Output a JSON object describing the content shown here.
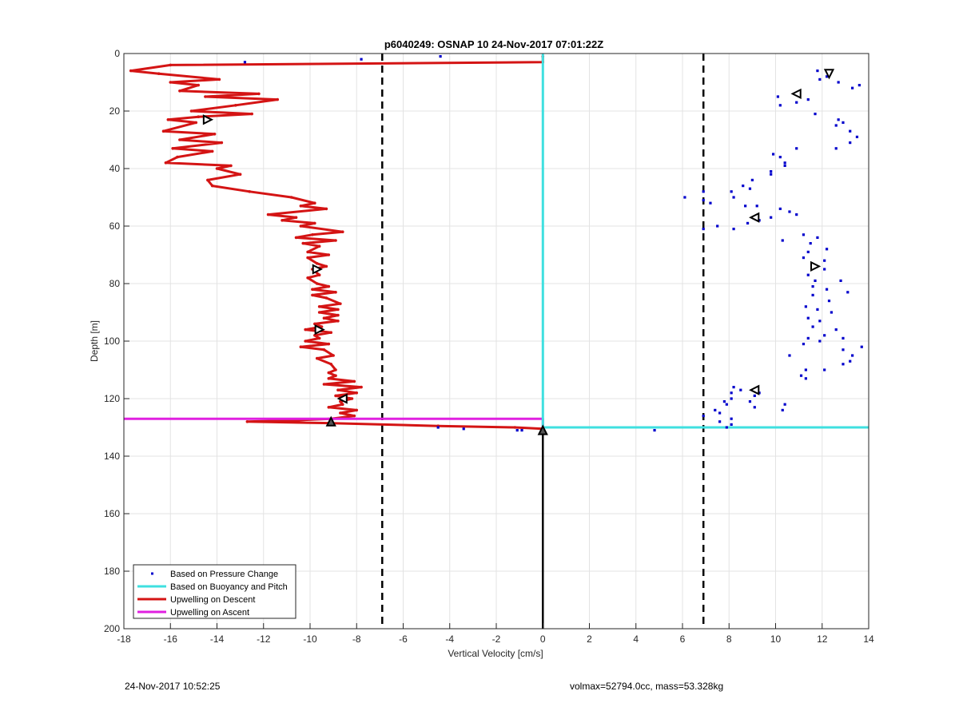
{
  "chart_data": {
    "type": "line",
    "title": "p6040249: OSNAP 10 24-Nov-2017 07:01:22Z",
    "xlabel": "Vertical Velocity [cm/s]",
    "ylabel": "Depth [m]",
    "xlim": [
      -18,
      14
    ],
    "ylim": [
      0,
      200
    ],
    "y_reversed": true,
    "grid": true,
    "xticks": [
      -18,
      -16,
      -14,
      -12,
      -10,
      -8,
      -6,
      -4,
      -2,
      0,
      2,
      4,
      6,
      8,
      10,
      12,
      14
    ],
    "yticks": [
      0,
      20,
      40,
      60,
      80,
      100,
      120,
      140,
      160,
      180,
      200
    ],
    "legend_position": "bottom-left",
    "legend": [
      {
        "name": "Based on Pressure Change",
        "color": "#0000cc",
        "style": "dots"
      },
      {
        "name": "Based on Buoyancy and Pitch",
        "color": "#3fe0e0",
        "style": "line"
      },
      {
        "name": "Upwelling on Descent",
        "color": "#d41414",
        "style": "line"
      },
      {
        "name": "Upwelling on Ascent",
        "color": "#e020e0",
        "style": "line"
      }
    ],
    "reference_lines": [
      {
        "x": -6.9,
        "style": "dashed",
        "color": "#000000"
      },
      {
        "x": 6.9,
        "style": "dashed",
        "color": "#000000"
      },
      {
        "x": 0,
        "y_from": 130,
        "y_to": 200,
        "style": "solid",
        "color": "#000000"
      }
    ],
    "series": [
      {
        "label": "Upwelling on Descent",
        "color": "#d41414",
        "points": [
          [
            0,
            1
          ],
          [
            0,
            3
          ],
          [
            -16,
            4
          ],
          [
            -17.7,
            6
          ],
          [
            -16.5,
            7
          ],
          [
            -13.9,
            9
          ],
          [
            -16,
            10
          ],
          [
            -14.8,
            11
          ],
          [
            -15.6,
            13
          ],
          [
            -12.2,
            14
          ],
          [
            -14.5,
            15
          ],
          [
            -11.4,
            16
          ],
          [
            -13.2,
            18
          ],
          [
            -15.1,
            20
          ],
          [
            -12.5,
            21
          ],
          [
            -14.8,
            22
          ],
          [
            -16.1,
            23
          ],
          [
            -14.9,
            24
          ],
          [
            -16.3,
            27
          ],
          [
            -14.1,
            28
          ],
          [
            -15.6,
            30
          ],
          [
            -13.8,
            31
          ],
          [
            -15.9,
            33
          ],
          [
            -14.2,
            34
          ],
          [
            -15.7,
            36
          ],
          [
            -16.2,
            38
          ],
          [
            -13.4,
            39
          ],
          [
            -14,
            40
          ],
          [
            -13,
            42
          ],
          [
            -14.4,
            44
          ],
          [
            -14.2,
            46
          ],
          [
            -12.6,
            48
          ],
          [
            -10.8,
            50
          ],
          [
            -9.8,
            52
          ],
          [
            -10.4,
            53
          ],
          [
            -9.3,
            54
          ],
          [
            -11.8,
            56
          ],
          [
            -10.6,
            57
          ],
          [
            -11.2,
            58
          ],
          [
            -9.8,
            59
          ],
          [
            -10.4,
            60
          ],
          [
            -8.6,
            62
          ],
          [
            -9.9,
            63
          ],
          [
            -10.6,
            64
          ],
          [
            -8.9,
            65
          ],
          [
            -10.3,
            66
          ],
          [
            -9.6,
            67
          ],
          [
            -10.1,
            69
          ],
          [
            -9.2,
            70
          ],
          [
            -10.1,
            71
          ],
          [
            -9.7,
            73
          ],
          [
            -9.3,
            74
          ],
          [
            -9.9,
            75
          ],
          [
            -9.6,
            77
          ],
          [
            -10.1,
            78
          ],
          [
            -9.7,
            80
          ],
          [
            -9.2,
            81
          ],
          [
            -9.9,
            82
          ],
          [
            -8.9,
            83
          ],
          [
            -9.9,
            84
          ],
          [
            -9.3,
            85
          ],
          [
            -8.7,
            87
          ],
          [
            -9.6,
            88
          ],
          [
            -8.8,
            89
          ],
          [
            -9.6,
            90
          ],
          [
            -8.8,
            91
          ],
          [
            -9.4,
            92
          ],
          [
            -8.8,
            93
          ],
          [
            -9.8,
            94
          ],
          [
            -9.5,
            95
          ],
          [
            -10.2,
            96
          ],
          [
            -9.1,
            97
          ],
          [
            -9.8,
            98
          ],
          [
            -9.6,
            99
          ],
          [
            -10.2,
            100
          ],
          [
            -9.2,
            101
          ],
          [
            -10.4,
            102
          ],
          [
            -9.4,
            103
          ],
          [
            -9,
            105
          ],
          [
            -9.7,
            106
          ],
          [
            -9.1,
            108
          ],
          [
            -8.9,
            110
          ],
          [
            -9.2,
            111
          ],
          [
            -8.9,
            112
          ],
          [
            -9.2,
            113
          ],
          [
            -8.1,
            114
          ],
          [
            -9.4,
            115
          ],
          [
            -7.8,
            116
          ],
          [
            -8.8,
            117
          ],
          [
            -8,
            118
          ],
          [
            -8.9,
            119
          ],
          [
            -8.2,
            120
          ],
          [
            -8.7,
            121
          ],
          [
            -8.6,
            122
          ],
          [
            -9.2,
            123
          ],
          [
            -8,
            124
          ],
          [
            -8.7,
            125
          ],
          [
            -8.1,
            126
          ],
          [
            -9.1,
            127
          ],
          [
            -10.5,
            127.5
          ],
          [
            -12.7,
            128
          ],
          [
            -9.2,
            128.5
          ],
          [
            -4.5,
            129.5
          ],
          [
            -1.2,
            130
          ],
          [
            0,
            130.5
          ]
        ]
      },
      {
        "label": "Upwelling on Ascent",
        "color": "#e020e0",
        "points": [
          [
            -18,
            127
          ],
          [
            0,
            127
          ],
          [
            0,
            130
          ]
        ]
      },
      {
        "label": "Based on Buoyancy and Pitch",
        "color": "#3fe0e0",
        "points": [
          [
            0,
            0
          ],
          [
            0,
            130
          ],
          [
            14,
            130
          ]
        ]
      }
    ],
    "scatter_series": {
      "label": "Based on Pressure Change",
      "color": "#0000cc",
      "points": [
        [
          -12.8,
          3
        ],
        [
          -7.8,
          2
        ],
        [
          -4.4,
          1
        ],
        [
          11.9,
          9
        ],
        [
          12.2,
          8
        ],
        [
          11.8,
          6
        ],
        [
          12.7,
          10
        ],
        [
          13.3,
          12
        ],
        [
          13.6,
          11
        ],
        [
          10.1,
          15
        ],
        [
          10.9,
          17
        ],
        [
          11.4,
          16
        ],
        [
          11.7,
          21
        ],
        [
          10.2,
          18
        ],
        [
          12.7,
          23
        ],
        [
          12.6,
          25
        ],
        [
          12.9,
          24
        ],
        [
          13.2,
          27
        ],
        [
          13.5,
          29
        ],
        [
          12.6,
          33
        ],
        [
          13.2,
          31
        ],
        [
          9.9,
          35
        ],
        [
          10.2,
          36
        ],
        [
          10.4,
          38
        ],
        [
          10.4,
          39
        ],
        [
          10.9,
          33
        ],
        [
          9.8,
          41
        ],
        [
          9.8,
          42
        ],
        [
          9,
          44
        ],
        [
          8.6,
          46
        ],
        [
          8.9,
          47
        ],
        [
          8.1,
          48
        ],
        [
          8.2,
          50
        ],
        [
          6.9,
          48
        ],
        [
          6.1,
          50
        ],
        [
          6.9,
          51
        ],
        [
          7.2,
          52
        ],
        [
          8.7,
          53
        ],
        [
          9.2,
          53
        ],
        [
          10.2,
          54
        ],
        [
          10.6,
          55
        ],
        [
          10.9,
          56
        ],
        [
          9.8,
          57
        ],
        [
          9.3,
          58
        ],
        [
          8.8,
          59
        ],
        [
          7.5,
          60
        ],
        [
          6.9,
          61
        ],
        [
          8.2,
          61
        ],
        [
          10.3,
          65
        ],
        [
          11.2,
          63
        ],
        [
          11.8,
          64
        ],
        [
          11.5,
          66
        ],
        [
          12.2,
          68
        ],
        [
          11.4,
          69
        ],
        [
          11.2,
          71
        ],
        [
          12.1,
          72
        ],
        [
          11.6,
          74
        ],
        [
          12.1,
          75
        ],
        [
          11.4,
          77
        ],
        [
          11.7,
          79
        ],
        [
          12.8,
          79
        ],
        [
          11.6,
          81
        ],
        [
          12.2,
          82
        ],
        [
          13.1,
          83
        ],
        [
          11.6,
          84
        ],
        [
          12.3,
          86
        ],
        [
          11.3,
          88
        ],
        [
          11.8,
          89
        ],
        [
          12.4,
          90
        ],
        [
          11.4,
          92
        ],
        [
          11.9,
          93
        ],
        [
          11.6,
          95
        ],
        [
          12.6,
          96
        ],
        [
          12.1,
          98
        ],
        [
          11.4,
          99
        ],
        [
          12.9,
          99
        ],
        [
          11.9,
          100
        ],
        [
          11.2,
          101
        ],
        [
          13.7,
          102
        ],
        [
          12.9,
          103
        ],
        [
          13.3,
          105
        ],
        [
          13.2,
          107
        ],
        [
          12.9,
          108
        ],
        [
          10.6,
          105
        ],
        [
          11.3,
          110
        ],
        [
          12.1,
          110
        ],
        [
          11.1,
          112
        ],
        [
          11.3,
          113
        ],
        [
          8.2,
          116
        ],
        [
          8.5,
          117
        ],
        [
          8.1,
          118
        ],
        [
          9.3,
          118
        ],
        [
          9.1,
          119
        ],
        [
          8.1,
          120
        ],
        [
          7.8,
          121
        ],
        [
          8.9,
          121
        ],
        [
          7.9,
          122
        ],
        [
          10.4,
          122
        ],
        [
          9.1,
          123
        ],
        [
          7.4,
          124
        ],
        [
          7.6,
          125
        ],
        [
          10.3,
          124
        ],
        [
          6.9,
          126
        ],
        [
          8.1,
          127
        ],
        [
          7.6,
          128
        ],
        [
          8.1,
          129
        ],
        [
          7.9,
          130
        ],
        [
          4.8,
          131
        ],
        [
          -4.5,
          130
        ],
        [
          -3.4,
          130.5
        ],
        [
          -1.1,
          131
        ],
        [
          -0.9,
          131
        ]
      ]
    },
    "markers": [
      {
        "shape": "triangle-right",
        "points": [
          [
            -14.4,
            23
          ],
          [
            -9.6,
            96
          ],
          [
            -9.7,
            75
          ]
        ]
      },
      {
        "shape": "triangle-left",
        "points": [
          [
            -8.6,
            120
          ],
          [
            9.1,
            57
          ],
          [
            10.9,
            14
          ],
          [
            9.1,
            117
          ]
        ]
      },
      {
        "shape": "triangle-down",
        "points": [
          [
            12.3,
            7
          ]
        ]
      },
      {
        "shape": "triangle-up",
        "points": [
          [
            -9.1,
            128
          ],
          [
            0,
            131
          ]
        ]
      },
      {
        "shape": "triangle-right",
        "points": [
          [
            11.7,
            74
          ]
        ]
      }
    ]
  },
  "footer": {
    "left": "24-Nov-2017 10:52:25",
    "right": "volmax=52794.0cc, mass=53.328kg"
  }
}
